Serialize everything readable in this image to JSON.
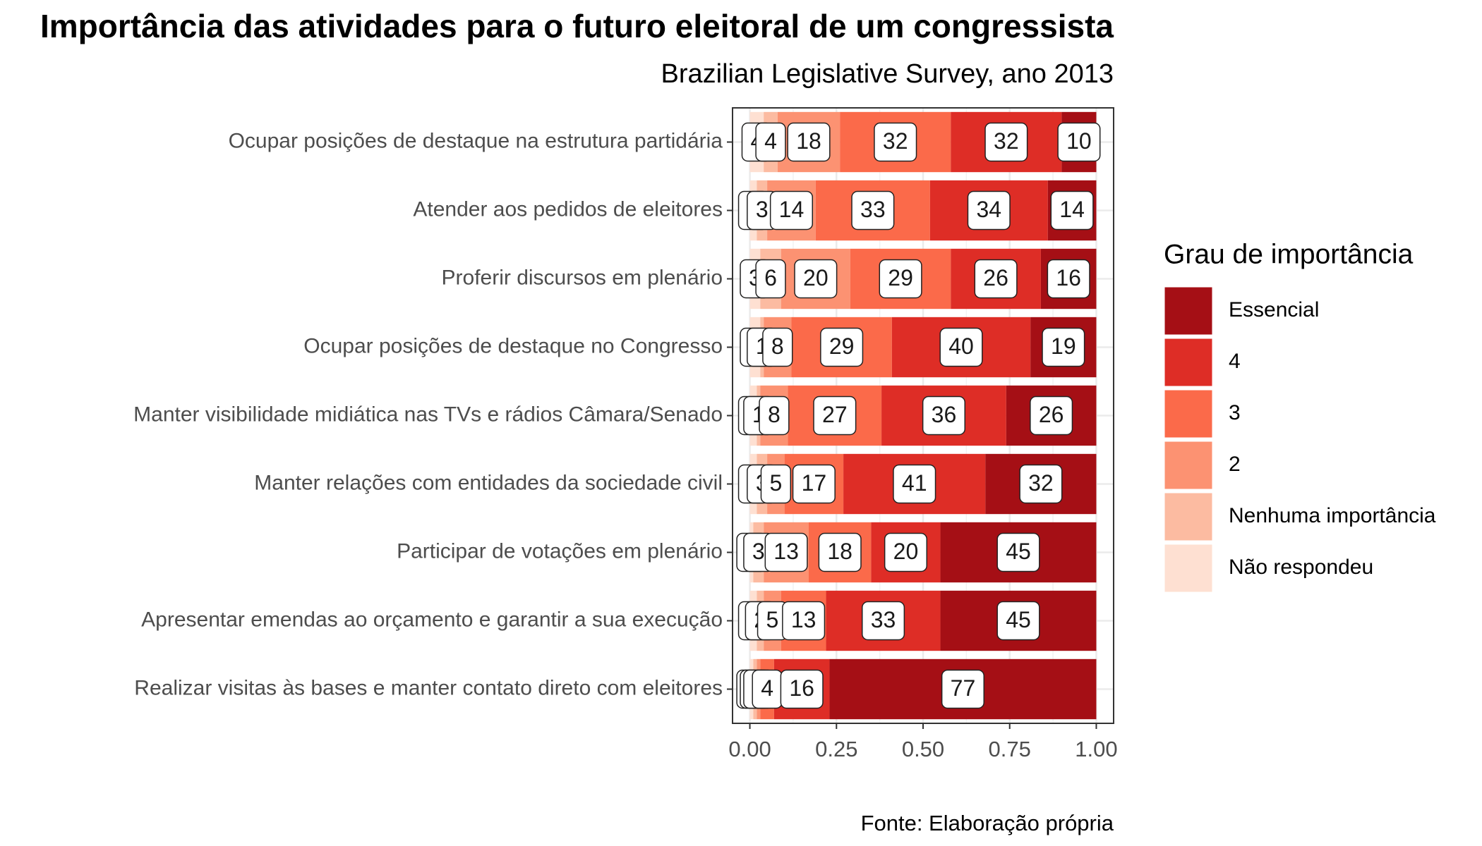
{
  "chart_data": {
    "type": "bar",
    "orientation": "horizontal",
    "stacked": true,
    "title": "Importância das atividades para o futuro eleitoral de um congressista",
    "subtitle": "Brazilian Legislative Survey, ano 2013",
    "caption": "Fonte: Elaboração própria",
    "legend_title": "Grau de importância",
    "legend_position": "right",
    "grid": true,
    "categories": [
      "Ocupar posições de destaque na estrutura partidária",
      "Atender aos pedidos de eleitores",
      "Proferir discursos em plenário",
      "Ocupar posições de destaque no Congresso",
      "Manter visibilidade midiática nas TVs e rádios Câmara/Senado",
      "Manter relações com entidades da sociedade civil",
      "Participar de votações em plenário",
      "Apresentar emendas ao orçamento e garantir a sua execução",
      "Realizar visitas às bases e manter contato direto com eleitores"
    ],
    "xlim": [
      -0.05,
      1.05
    ],
    "xticks": [
      {
        "value": 0,
        "label": "0.00"
      },
      {
        "value": 0.25,
        "label": "0.25"
      },
      {
        "value": 0.5,
        "label": "0.50"
      },
      {
        "value": 0.75,
        "label": "0.75"
      },
      {
        "value": 1,
        "label": "1.00"
      }
    ],
    "series": [
      {
        "name": "Essencial",
        "color": "#a50f15",
        "values": [
          0.1,
          0.14,
          0.16,
          0.19,
          0.26,
          0.32,
          0.45,
          0.45,
          0.77
        ],
        "value_labels": [
          "10",
          "14",
          "16",
          "19",
          "26",
          "32",
          "45",
          "45",
          "77"
        ]
      },
      {
        "name": "4",
        "color": "#de2d26",
        "values": [
          0.32,
          0.34,
          0.26,
          0.4,
          0.36,
          0.41,
          0.2,
          0.33,
          0.16
        ],
        "value_labels": [
          "32",
          "34",
          "26",
          "40",
          "36",
          "41",
          "20",
          "33",
          "16"
        ]
      },
      {
        "name": "3",
        "color": "#fb6a4a",
        "values": [
          0.32,
          0.33,
          0.29,
          0.29,
          0.27,
          0.17,
          0.18,
          0.13,
          0.04
        ],
        "value_labels": [
          "32",
          "33",
          "29",
          "29",
          "27",
          "17",
          "18",
          "13",
          "4"
        ]
      },
      {
        "name": "2",
        "color": "#fc9272",
        "values": [
          0.18,
          0.14,
          0.2,
          0.08,
          0.08,
          0.05,
          0.13,
          0.05,
          0.01
        ],
        "value_labels": [
          "18",
          "14",
          "20",
          "8",
          "8",
          "5",
          "13",
          "5",
          "1"
        ]
      },
      {
        "name": "Nenhuma importância",
        "color": "#fcbba1",
        "values": [
          0.04,
          0.03,
          0.06,
          0.01,
          0.01,
          0.03,
          0.03,
          0.02,
          0.01
        ],
        "value_labels": [
          "4",
          "3",
          "6",
          "1",
          "1",
          "3",
          "3",
          "2",
          "1"
        ]
      },
      {
        "name": "Não respondeu",
        "color": "#fee0d2",
        "values": [
          0.04,
          0.02,
          0.03,
          0.03,
          0.02,
          0.02,
          0.01,
          0.02,
          0.01
        ],
        "value_labels": [
          "4",
          "2",
          "3",
          "3",
          "2",
          "2",
          "1",
          "2",
          "1"
        ]
      }
    ]
  }
}
